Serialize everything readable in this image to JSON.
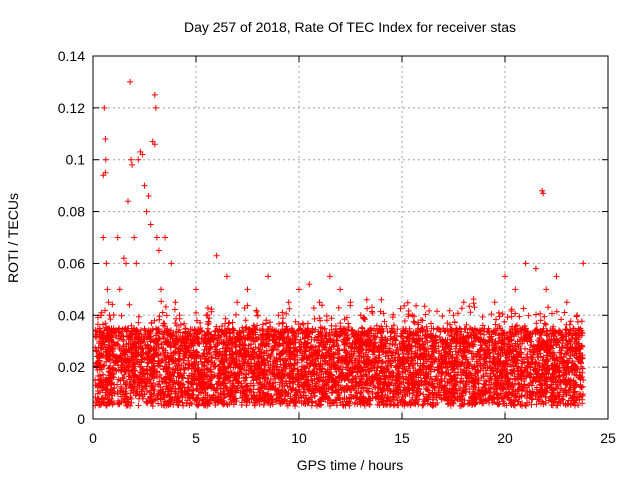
{
  "chart_data": {
    "type": "scatter",
    "title": "Day 257 of 2018, Rate Of TEC Index for receiver stas",
    "xlabel": "GPS time / hours",
    "ylabel": "ROTI / TECUs",
    "xlim": [
      0,
      25
    ],
    "ylim": [
      0,
      0.14
    ],
    "xticks": [
      0,
      5,
      10,
      15,
      20,
      25
    ],
    "xtick_labels": [
      "0",
      "5",
      "10",
      "15",
      "20",
      "25"
    ],
    "yticks": [
      0,
      0.02,
      0.04,
      0.06,
      0.08,
      0.1,
      0.12,
      0.14
    ],
    "ytick_labels": [
      "0",
      "0.02",
      "0.04",
      "0.06",
      "0.08",
      "0.1",
      "0.12",
      "0.14"
    ],
    "grid": true,
    "marker": "+",
    "marker_color": "#ff0000",
    "series": [
      {
        "name": "ROTI",
        "x": [
          0.1,
          0.2,
          0.3,
          0.4,
          0.5,
          0.5,
          0.55,
          0.6,
          0.6,
          0.62,
          0.65,
          0.7,
          0.75,
          0.8,
          0.9,
          1.0,
          1.2,
          1.3,
          1.5,
          1.6,
          1.7,
          1.8,
          1.85,
          1.9,
          2.0,
          2.1,
          2.2,
          2.3,
          2.4,
          2.5,
          2.6,
          2.7,
          2.8,
          2.9,
          3.0,
          3.0,
          3.05,
          3.1,
          3.2,
          3.3,
          3.5,
          3.8,
          4.0,
          4.2,
          4.5,
          5.0,
          5.5,
          6.0,
          6.5,
          7.0,
          7.5,
          8.0,
          8.5,
          9.0,
          9.5,
          10.0,
          10.5,
          11.0,
          11.5,
          12.0,
          12.5,
          13.0,
          13.5,
          14.0,
          14.5,
          15.0,
          15.5,
          16.0,
          16.5,
          17.0,
          17.5,
          18.0,
          18.5,
          19.0,
          19.5,
          20.0,
          20.5,
          21.0,
          21.5,
          21.8,
          21.85,
          22.0,
          22.5,
          23.0,
          23.5,
          23.8
        ],
        "y": [
          0.015,
          0.02,
          0.03,
          0.04,
          0.07,
          0.094,
          0.12,
          0.108,
          0.095,
          0.1,
          0.06,
          0.05,
          0.045,
          0.04,
          0.035,
          0.035,
          0.07,
          0.05,
          0.062,
          0.06,
          0.084,
          0.13,
          0.1,
          0.098,
          0.07,
          0.06,
          0.1,
          0.103,
          0.102,
          0.09,
          0.08,
          0.086,
          0.075,
          0.107,
          0.106,
          0.125,
          0.12,
          0.07,
          0.065,
          0.05,
          0.07,
          0.06,
          0.045,
          0.04,
          0.035,
          0.05,
          0.04,
          0.063,
          0.055,
          0.045,
          0.05,
          0.04,
          0.055,
          0.04,
          0.045,
          0.05,
          0.052,
          0.045,
          0.055,
          0.05,
          0.045,
          0.04,
          0.035,
          0.046,
          0.035,
          0.033,
          0.04,
          0.038,
          0.03,
          0.035,
          0.04,
          0.045,
          0.03,
          0.025,
          0.045,
          0.055,
          0.05,
          0.06,
          0.058,
          0.088,
          0.087,
          0.05,
          0.055,
          0.045,
          0.04,
          0.06
        ]
      }
    ],
    "baseline_band": {
      "description": "dense band of points",
      "y_min": 0.005,
      "y_max": 0.035
    }
  }
}
